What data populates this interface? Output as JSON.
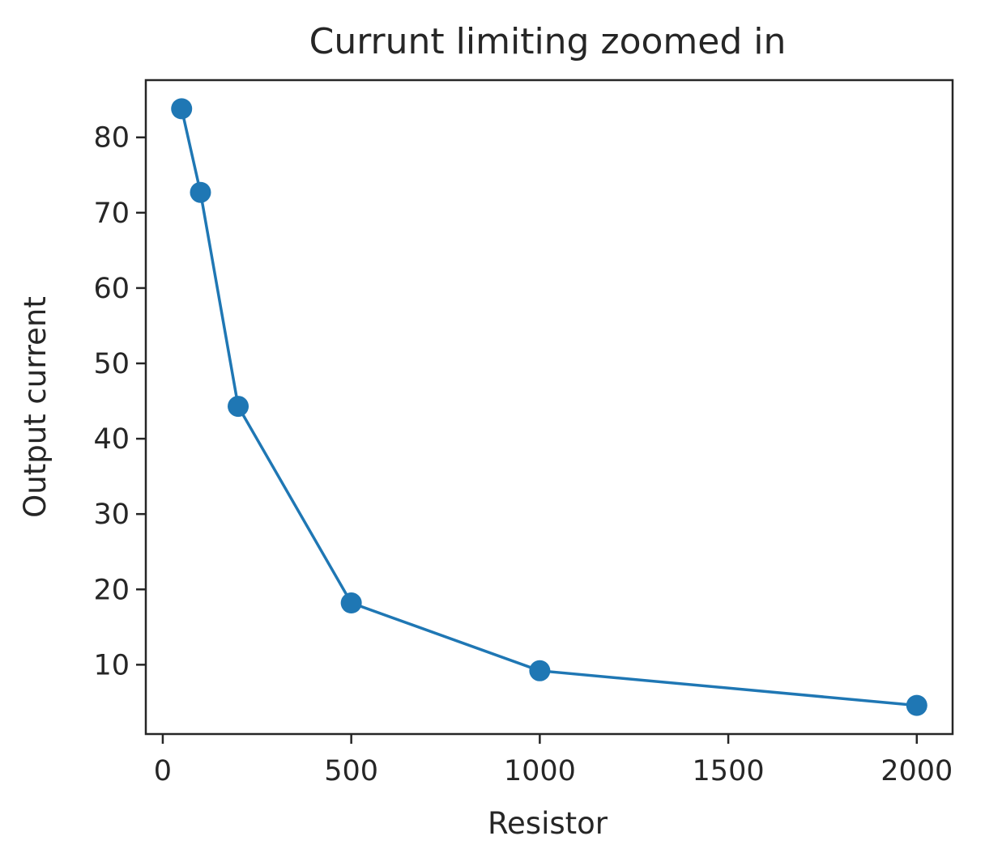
{
  "chart_data": {
    "type": "line",
    "title": "Currunt limiting zoomed in",
    "xlabel": "Resistor",
    "ylabel": "Output current",
    "x": [
      50,
      100,
      200,
      500,
      1000,
      2000
    ],
    "series": [
      {
        "values": [
          83.8,
          72.7,
          44.3,
          18.2,
          9.2,
          4.6
        ],
        "color": "#1f77b4",
        "marker": "circle"
      }
    ],
    "xlim": [
      -45,
      2095
    ],
    "ylim": [
      0.8,
      87.6
    ],
    "xticks": [
      0,
      500,
      1000,
      1500,
      2000
    ],
    "yticks": [
      10,
      20,
      30,
      40,
      50,
      60,
      70,
      80
    ],
    "xtick_labels": [
      "0",
      "500",
      "1000",
      "1500",
      "2000"
    ],
    "ytick_labels": [
      "10",
      "20",
      "30",
      "40",
      "50",
      "60",
      "70",
      "80"
    ],
    "grid": false,
    "legend": "none"
  }
}
